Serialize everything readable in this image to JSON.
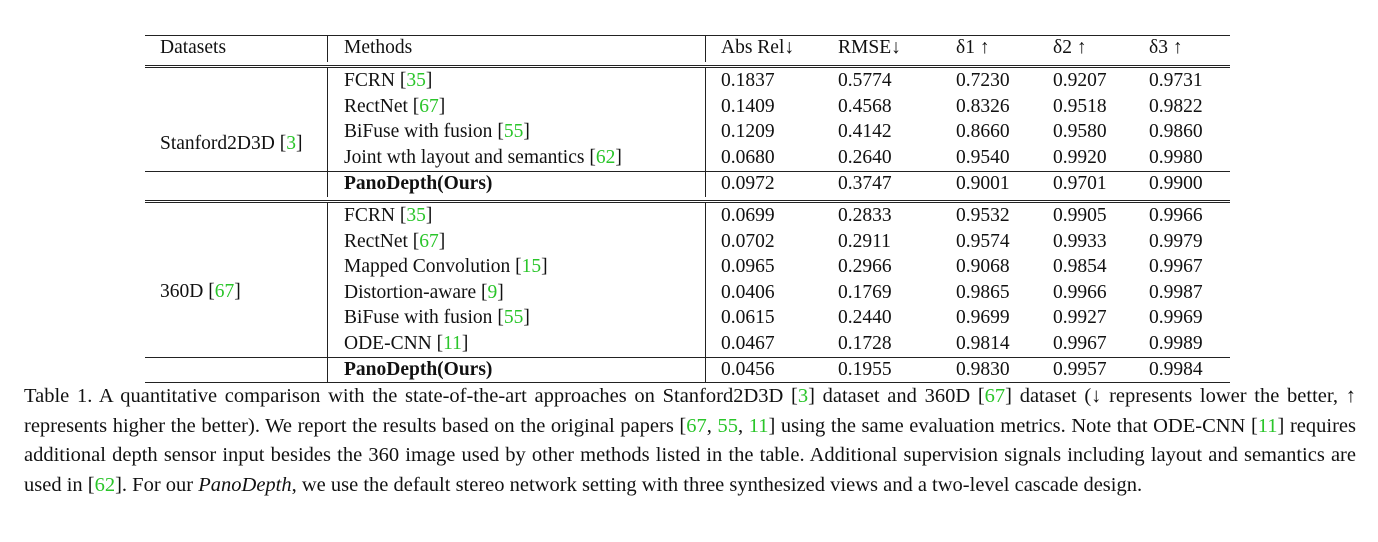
{
  "table": {
    "headers": [
      "Datasets",
      "Methods",
      "Abs Rel↓",
      "RMSE↓",
      "δ1 ↑",
      "δ2 ↑",
      "δ3 ↑"
    ],
    "groups": [
      {
        "dataset": "Stanford2D3D",
        "dataset_ref": "3",
        "rows": [
          {
            "method": "FCRN",
            "ref": "35",
            "values": [
              "0.1837",
              "0.5774",
              "0.7230",
              "0.9207",
              "0.9731"
            ]
          },
          {
            "method": "RectNet",
            "ref": "67",
            "values": [
              "0.1409",
              "0.4568",
              "0.8326",
              "0.9518",
              "0.9822"
            ]
          },
          {
            "method": "BiFuse with fusion",
            "ref": "55",
            "values": [
              "0.1209",
              "0.4142",
              "0.8660",
              "0.9580",
              "0.9860"
            ]
          },
          {
            "method": "Joint wth layout and semantics",
            "ref": "62",
            "values": [
              "0.0680",
              "0.2640",
              "0.9540",
              "0.9920",
              "0.9980"
            ]
          },
          {
            "method": "PanoDepth(Ours)",
            "ref": "",
            "bold": true,
            "values": [
              "0.0972",
              "0.3747",
              "0.9001",
              "0.9701",
              "0.9900"
            ]
          }
        ]
      },
      {
        "dataset": "360D",
        "dataset_ref": "67",
        "rows": [
          {
            "method": "FCRN",
            "ref": "35",
            "values": [
              "0.0699",
              "0.2833",
              "0.9532",
              "0.9905",
              "0.9966"
            ]
          },
          {
            "method": "RectNet",
            "ref": "67",
            "values": [
              "0.0702",
              "0.2911",
              "0.9574",
              "0.9933",
              "0.9979"
            ]
          },
          {
            "method": "Mapped Convolution",
            "ref": "15",
            "values": [
              "0.0965",
              "0.2966",
              "0.9068",
              "0.9854",
              "0.9967"
            ]
          },
          {
            "method": "Distortion-aware",
            "ref": "9",
            "values": [
              "0.0406",
              "0.1769",
              "0.9865",
              "0.9966",
              "0.9987"
            ]
          },
          {
            "method": "BiFuse with fusion",
            "ref": "55",
            "values": [
              "0.0615",
              "0.2440",
              "0.9699",
              "0.9927",
              "0.9969"
            ]
          },
          {
            "method": "ODE-CNN",
            "ref": "11",
            "values": [
              "0.0467",
              "0.1728",
              "0.9814",
              "0.9967",
              "0.9989"
            ]
          },
          {
            "method": "PanoDepth(Ours)",
            "ref": "",
            "bold": true,
            "values": [
              "0.0456",
              "0.1955",
              "0.9830",
              "0.9957",
              "0.9984"
            ]
          }
        ]
      }
    ]
  },
  "caption": {
    "t1": "Table 1. A quantitative comparison with the state-of-the-art approaches on Stanford2D3D [",
    "r1": "3",
    "t2": "] dataset and 360D [",
    "r2": "67",
    "t3": "] dataset (↓ represents lower the better, ↑ represents higher the better). We report the results based on the original papers [",
    "r3": "67",
    "t4": ", ",
    "r4": "55",
    "t5": ", ",
    "r5": "11",
    "t6": "] using the same evaluation metrics. Note that ODE-CNN [",
    "r6": "11",
    "t7": "] requires additional depth sensor input besides the 360 image used by other methods listed in the table. Additional supervision signals including layout and semantics are used in [",
    "r7": "62",
    "t8": "]. For our ",
    "em": "PanoDepth",
    "t9": ", we use the default stereo network setting with three synthesized views and a two-level cascade design."
  }
}
